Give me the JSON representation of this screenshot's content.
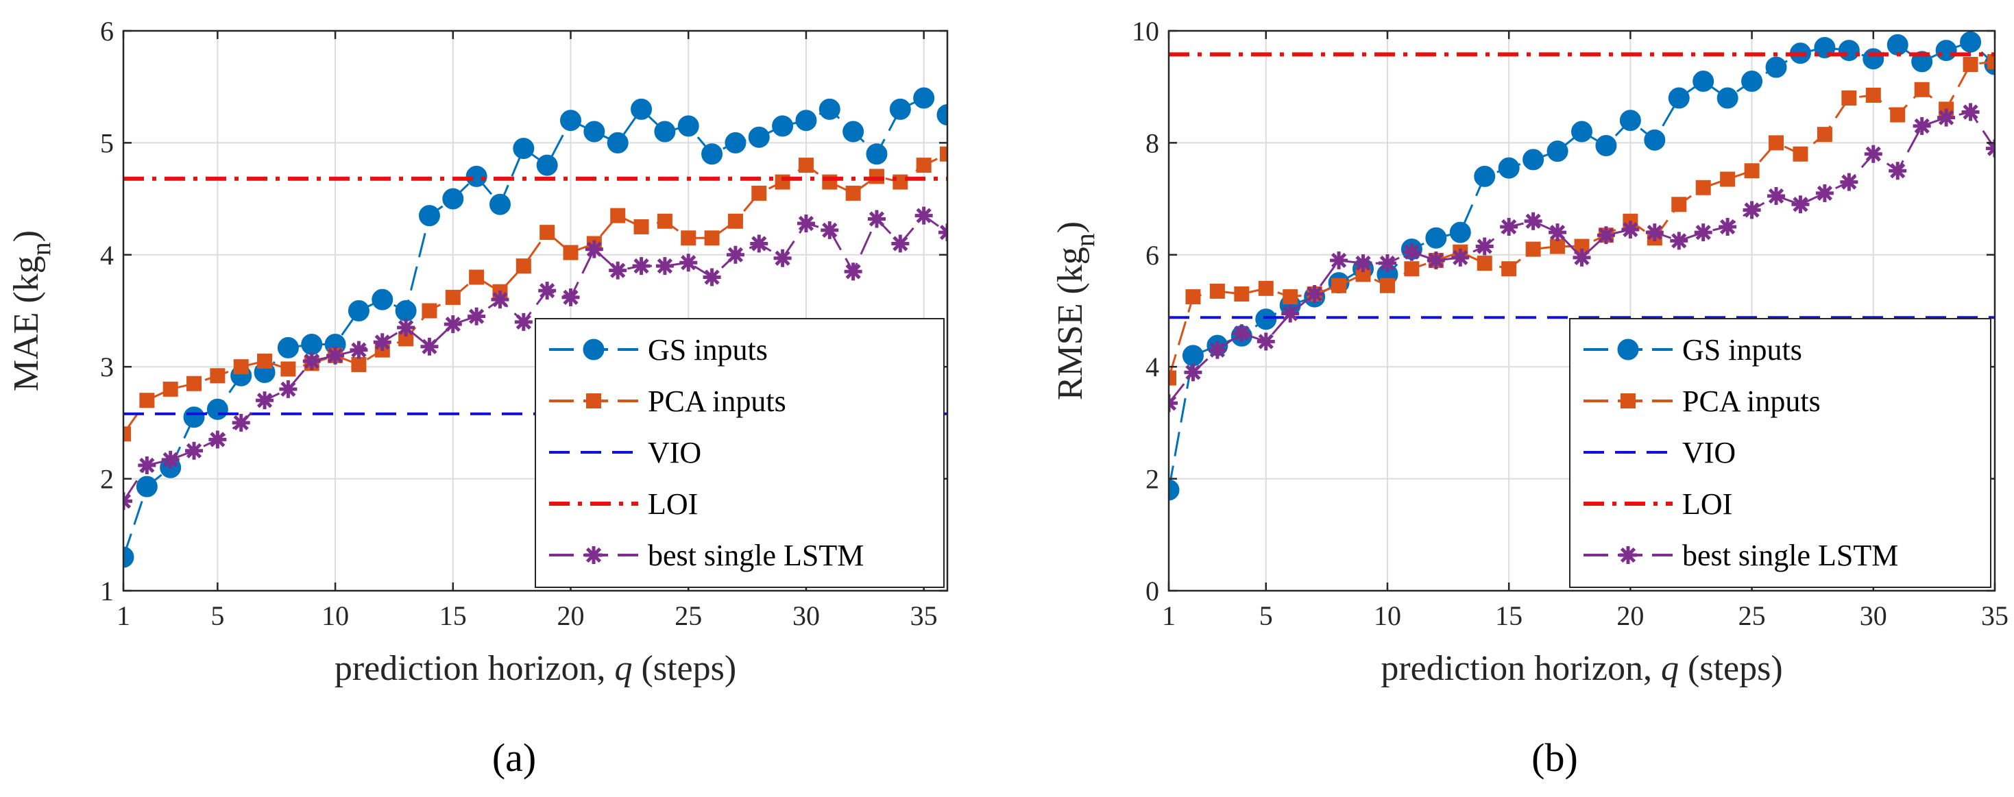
{
  "chart_data": [
    {
      "id": "a",
      "type": "line",
      "caption": "(a)",
      "xlabel_prefix": "prediction horizon, ",
      "xlabel_var": "q",
      "xlabel_suffix": " (steps)",
      "ylabel_main": "MAE (kg",
      "ylabel_sub": "n",
      "ylabel_close": ")",
      "xlim": [
        1,
        36
      ],
      "ylim": [
        1,
        6
      ],
      "xticks": [
        1,
        5,
        10,
        15,
        20,
        25,
        30,
        35
      ],
      "yticks": [
        1,
        2,
        3,
        4,
        5,
        6
      ],
      "grid": true,
      "legend_position": "bottom-right",
      "series": [
        {
          "name": "GS inputs",
          "color": "#0072BD",
          "marker": "circle",
          "dash": "long",
          "values": [
            1.3,
            1.93,
            2.1,
            2.55,
            2.62,
            2.92,
            2.95,
            3.17,
            3.2,
            3.2,
            3.5,
            3.6,
            3.5,
            4.35,
            4.5,
            4.7,
            4.45,
            4.95,
            4.8,
            5.2,
            5.1,
            5.0,
            5.3,
            5.1,
            5.15,
            4.9,
            5.0,
            5.05,
            5.15,
            5.2,
            5.3,
            5.1,
            4.9,
            5.3,
            5.4,
            5.25
          ]
        },
        {
          "name": "PCA inputs",
          "color": "#D95319",
          "marker": "square",
          "dash": "long",
          "values": [
            2.4,
            2.7,
            2.8,
            2.85,
            2.92,
            3.0,
            3.05,
            2.98,
            3.03,
            3.1,
            3.02,
            3.15,
            3.25,
            3.5,
            3.62,
            3.8,
            3.67,
            3.9,
            4.2,
            4.02,
            4.1,
            4.35,
            4.25,
            4.3,
            4.15,
            4.15,
            4.3,
            4.55,
            4.65,
            4.8,
            4.65,
            4.55,
            4.7,
            4.65,
            4.8,
            4.9
          ]
        },
        {
          "name": "VIO",
          "color": "#1010E0",
          "marker": "none",
          "dash": "dashed",
          "constant": 2.58,
          "values": [
            2.58
          ]
        },
        {
          "name": "LOI",
          "color": "#E81010",
          "marker": "none",
          "dash": "dashdot",
          "constant": 4.68,
          "values": [
            4.68
          ]
        },
        {
          "name": "best single LSTM",
          "color": "#7E2F8E",
          "marker": "asterisk",
          "dash": "long",
          "values": [
            1.8,
            2.12,
            2.17,
            2.25,
            2.35,
            2.5,
            2.7,
            2.8,
            3.05,
            3.1,
            3.15,
            3.22,
            3.35,
            3.18,
            3.38,
            3.45,
            3.6,
            3.4,
            3.68,
            3.62,
            4.05,
            3.86,
            3.9,
            3.9,
            3.93,
            3.8,
            4.0,
            4.1,
            3.97,
            4.28,
            4.22,
            3.85,
            4.32,
            4.1,
            4.35,
            4.2
          ]
        }
      ]
    },
    {
      "id": "b",
      "type": "line",
      "caption": "(b)",
      "xlabel_prefix": "prediction horizon, ",
      "xlabel_var": "q",
      "xlabel_suffix": " (steps)",
      "ylabel_main": "RMSE (kg",
      "ylabel_sub": "n",
      "ylabel_close": ")",
      "xlim": [
        1,
        35
      ],
      "ylim": [
        0,
        10
      ],
      "xticks": [
        1,
        5,
        10,
        15,
        20,
        25,
        30,
        35
      ],
      "yticks": [
        0,
        2,
        4,
        6,
        8,
        10
      ],
      "grid": true,
      "legend_position": "bottom-right",
      "series": [
        {
          "name": "GS inputs",
          "color": "#0072BD",
          "marker": "circle",
          "dash": "long",
          "values": [
            1.8,
            4.2,
            4.38,
            4.55,
            4.85,
            5.1,
            5.25,
            5.5,
            5.75,
            5.65,
            6.1,
            6.3,
            6.4,
            7.4,
            7.55,
            7.7,
            7.85,
            8.2,
            7.95,
            8.4,
            8.05,
            8.8,
            9.1,
            8.8,
            9.1,
            9.35,
            9.6,
            9.7,
            9.65,
            9.5,
            9.75,
            9.45,
            9.65,
            9.8,
            9.4
          ]
        },
        {
          "name": "PCA inputs",
          "color": "#D95319",
          "marker": "square",
          "dash": "long",
          "values": [
            3.8,
            5.25,
            5.35,
            5.3,
            5.4,
            5.25,
            5.3,
            5.45,
            5.65,
            5.45,
            5.75,
            5.9,
            6.05,
            5.85,
            5.75,
            6.1,
            6.15,
            6.15,
            6.35,
            6.6,
            6.3,
            6.9,
            7.2,
            7.35,
            7.5,
            8.0,
            7.8,
            8.15,
            8.8,
            8.85,
            8.5,
            8.95,
            8.6,
            9.4,
            9.45
          ]
        },
        {
          "name": "VIO",
          "color": "#1010E0",
          "marker": "none",
          "dash": "dashed",
          "constant": 4.88,
          "values": [
            4.88
          ]
        },
        {
          "name": "LOI",
          "color": "#E81010",
          "marker": "none",
          "dash": "dashdot",
          "constant": 9.58,
          "values": [
            9.58
          ]
        },
        {
          "name": "best single LSTM",
          "color": "#7E2F8E",
          "marker": "asterisk",
          "dash": "long",
          "values": [
            3.35,
            3.9,
            4.3,
            4.6,
            4.45,
            4.95,
            5.3,
            5.9,
            5.85,
            5.85,
            6.05,
            5.9,
            5.95,
            6.15,
            6.5,
            6.6,
            6.4,
            5.95,
            6.35,
            6.45,
            6.4,
            6.25,
            6.4,
            6.5,
            6.8,
            7.05,
            6.9,
            7.1,
            7.3,
            7.8,
            7.5,
            8.3,
            8.45,
            8.55,
            7.9
          ]
        }
      ]
    }
  ]
}
